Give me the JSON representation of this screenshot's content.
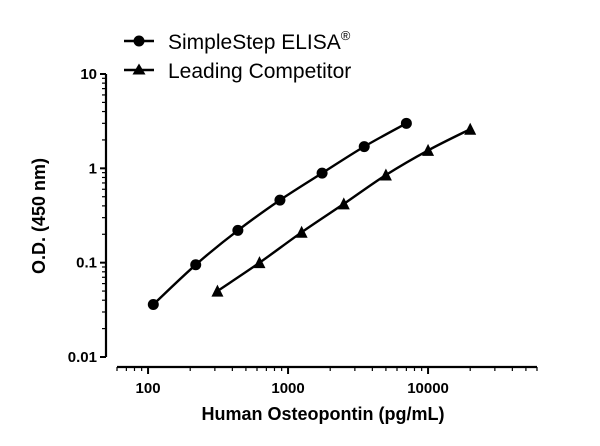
{
  "chart_data": {
    "type": "line",
    "title": "",
    "xlabel": "Human Osteopontin (pg/mL)",
    "ylabel": "O.D. (450 nm)",
    "xscale": "log",
    "yscale": "log",
    "xlim": [
      60,
      60000
    ],
    "ylim": [
      0.01,
      10
    ],
    "x_tick_labels": [
      "100",
      "1000",
      "10000"
    ],
    "y_tick_labels": [
      "0.01",
      "0.1",
      "1",
      "10"
    ],
    "grid": false,
    "legend_position": "top-left",
    "series": [
      {
        "name": "SimpleStep ELISA",
        "name_superscript": "®",
        "marker": "circle",
        "color": "#000000",
        "x": [
          109,
          219,
          438,
          875,
          1750,
          3500,
          7000
        ],
        "y": [
          0.036,
          0.095,
          0.22,
          0.46,
          0.89,
          1.7,
          3.0
        ]
      },
      {
        "name": "Leading Competitor",
        "name_superscript": "",
        "marker": "triangle",
        "color": "#000000",
        "x": [
          313,
          625,
          1250,
          2500,
          5000,
          10000,
          20000
        ],
        "y": [
          0.05,
          0.1,
          0.21,
          0.42,
          0.85,
          1.55,
          2.6
        ]
      }
    ]
  }
}
